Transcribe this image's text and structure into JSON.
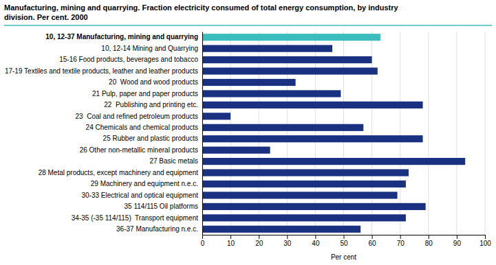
{
  "chart_data": {
    "type": "bar",
    "orientation": "horizontal",
    "title": "Manufacturing, mining and quarrying. Fraction electricity consumed of total energy consumption, by industry",
    "subtitle": "division. Per cent. 2000",
    "categories": [
      "10, 12-37 Manufacturing, mining and quarrying",
      "10, 12-14 Mining and Quarrying",
      "15-16 Food products, beverages and tobacco",
      "17-19 Textiles and textile products, leather and leather products",
      "20  Wood and wood products",
      "21 Pulp, paper and paper products",
      "22  Publishing and printing etc.",
      "23  Coal and refined petroleum products",
      "24 Chemicals and chemical products",
      "25 Rubber and plastic products",
      "26 Other non-metallic mineral products",
      "27 Basic metals",
      "28 Metal products, except machinery and equipment",
      "29 Machinery and equipment n.e.c.",
      "30-33 Electrical and optical equipment",
      "35 114/115 Oil platforms",
      "34-35 (-35 114/115)  Transport equipment",
      "36-37 Manufacturing n.e.c."
    ],
    "values": [
      63,
      46,
      60,
      62,
      33,
      49,
      78,
      10,
      57,
      78,
      24,
      93,
      73,
      72,
      69,
      79,
      72,
      56
    ],
    "colors": [
      "#3cbcbc",
      "#1a3080",
      "#1a3080",
      "#1a3080",
      "#1a3080",
      "#1a3080",
      "#1a3080",
      "#1a3080",
      "#1a3080",
      "#1a3080",
      "#1a3080",
      "#1a3080",
      "#1a3080",
      "#1a3080",
      "#1a3080",
      "#1a3080",
      "#1a3080",
      "#1a3080"
    ],
    "xlabel": "Per cent",
    "xlim": [
      0,
      100
    ],
    "xticks": [
      0,
      10,
      20,
      30,
      40,
      50,
      60,
      70,
      80,
      90,
      100
    ],
    "grid": true
  }
}
